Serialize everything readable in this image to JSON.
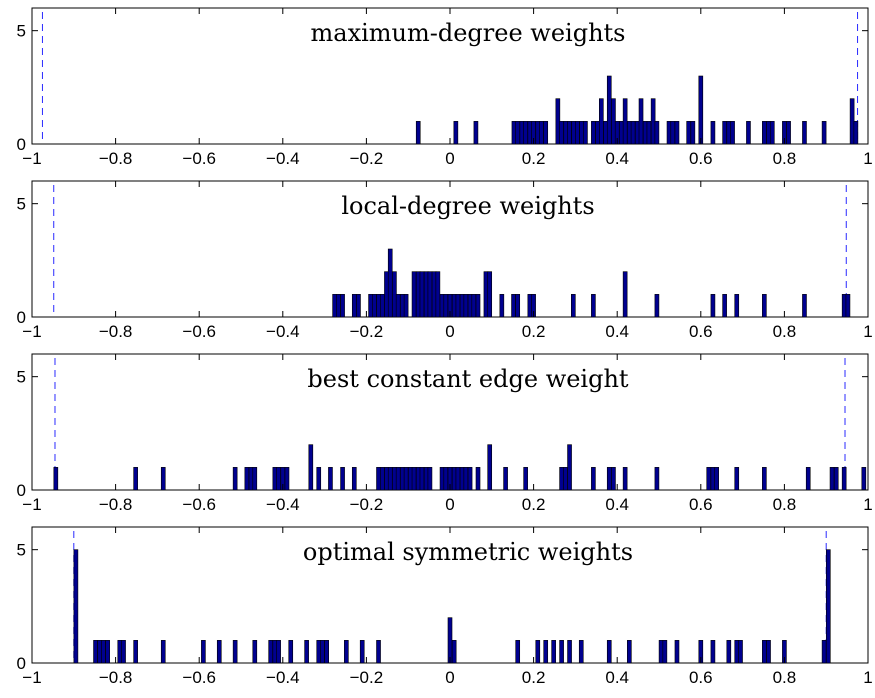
{
  "chart_data": [
    {
      "type": "bar",
      "title": "maximum-degree weights",
      "xlim": [
        -1,
        1
      ],
      "ylim": [
        0,
        6
      ],
      "xticks": [
        "−1",
        "−0.8",
        "−0.6",
        "−0.4",
        "−0.2",
        "0",
        "0.2",
        "0.4",
        "0.6",
        "0.8",
        "1"
      ],
      "yticks": [
        "0",
        "5"
      ],
      "bar_color": "#00008f",
      "bound_color": "#2b2bff",
      "bounds": [
        -0.975,
        0.975
      ],
      "values": [
        {
          "x": -0.076,
          "y": 1
        },
        {
          "x": 0.014,
          "y": 1
        },
        {
          "x": 0.062,
          "y": 1
        },
        {
          "x": 0.153,
          "y": 1
        },
        {
          "x": 0.162,
          "y": 1
        },
        {
          "x": 0.172,
          "y": 1
        },
        {
          "x": 0.181,
          "y": 1
        },
        {
          "x": 0.191,
          "y": 1
        },
        {
          "x": 0.2,
          "y": 1
        },
        {
          "x": 0.21,
          "y": 1
        },
        {
          "x": 0.219,
          "y": 1
        },
        {
          "x": 0.229,
          "y": 1
        },
        {
          "x": 0.258,
          "y": 2
        },
        {
          "x": 0.267,
          "y": 1
        },
        {
          "x": 0.277,
          "y": 1
        },
        {
          "x": 0.286,
          "y": 1
        },
        {
          "x": 0.296,
          "y": 1
        },
        {
          "x": 0.305,
          "y": 1
        },
        {
          "x": 0.315,
          "y": 1
        },
        {
          "x": 0.324,
          "y": 1
        },
        {
          "x": 0.343,
          "y": 1
        },
        {
          "x": 0.353,
          "y": 1
        },
        {
          "x": 0.362,
          "y": 2
        },
        {
          "x": 0.372,
          "y": 1
        },
        {
          "x": 0.381,
          "y": 3
        },
        {
          "x": 0.391,
          "y": 2
        },
        {
          "x": 0.4,
          "y": 1
        },
        {
          "x": 0.41,
          "y": 1
        },
        {
          "x": 0.419,
          "y": 2
        },
        {
          "x": 0.429,
          "y": 1
        },
        {
          "x": 0.438,
          "y": 1
        },
        {
          "x": 0.448,
          "y": 1
        },
        {
          "x": 0.457,
          "y": 2
        },
        {
          "x": 0.467,
          "y": 1
        },
        {
          "x": 0.476,
          "y": 1
        },
        {
          "x": 0.486,
          "y": 2
        },
        {
          "x": 0.495,
          "y": 1
        },
        {
          "x": 0.524,
          "y": 1
        },
        {
          "x": 0.533,
          "y": 1
        },
        {
          "x": 0.543,
          "y": 1
        },
        {
          "x": 0.571,
          "y": 1
        },
        {
          "x": 0.581,
          "y": 1
        },
        {
          "x": 0.6,
          "y": 3
        },
        {
          "x": 0.629,
          "y": 1
        },
        {
          "x": 0.657,
          "y": 1
        },
        {
          "x": 0.667,
          "y": 1
        },
        {
          "x": 0.676,
          "y": 1
        },
        {
          "x": 0.714,
          "y": 1
        },
        {
          "x": 0.752,
          "y": 1
        },
        {
          "x": 0.762,
          "y": 1
        },
        {
          "x": 0.771,
          "y": 1
        },
        {
          "x": 0.8,
          "y": 1
        },
        {
          "x": 0.81,
          "y": 1
        },
        {
          "x": 0.848,
          "y": 1
        },
        {
          "x": 0.895,
          "y": 1
        },
        {
          "x": 0.962,
          "y": 2
        },
        {
          "x": 0.971,
          "y": 1
        }
      ]
    },
    {
      "type": "bar",
      "title": "local-degree weights",
      "xlim": [
        -1,
        1
      ],
      "ylim": [
        0,
        6
      ],
      "xticks": [
        "−1",
        "−0.8",
        "−0.6",
        "−0.4",
        "−0.2",
        "0",
        "0.2",
        "0.4",
        "0.6",
        "0.8",
        "1"
      ],
      "yticks": [
        "0",
        "5"
      ],
      "bar_color": "#00008f",
      "bound_color": "#2b2bff",
      "bounds": [
        -0.948,
        0.948
      ],
      "values": [
        {
          "x": -0.276,
          "y": 1
        },
        {
          "x": -0.267,
          "y": 1
        },
        {
          "x": -0.257,
          "y": 1
        },
        {
          "x": -0.229,
          "y": 1
        },
        {
          "x": -0.219,
          "y": 1
        },
        {
          "x": -0.19,
          "y": 1
        },
        {
          "x": -0.181,
          "y": 1
        },
        {
          "x": -0.171,
          "y": 1
        },
        {
          "x": -0.162,
          "y": 1
        },
        {
          "x": -0.152,
          "y": 2
        },
        {
          "x": -0.143,
          "y": 3
        },
        {
          "x": -0.133,
          "y": 2
        },
        {
          "x": -0.124,
          "y": 1
        },
        {
          "x": -0.114,
          "y": 1
        },
        {
          "x": -0.105,
          "y": 1
        },
        {
          "x": -0.086,
          "y": 2
        },
        {
          "x": -0.076,
          "y": 2
        },
        {
          "x": -0.067,
          "y": 2
        },
        {
          "x": -0.057,
          "y": 2
        },
        {
          "x": -0.048,
          "y": 2
        },
        {
          "x": -0.038,
          "y": 2
        },
        {
          "x": -0.029,
          "y": 2
        },
        {
          "x": -0.019,
          "y": 1
        },
        {
          "x": -0.01,
          "y": 1
        },
        {
          "x": 0.0,
          "y": 1
        },
        {
          "x": 0.01,
          "y": 1
        },
        {
          "x": 0.019,
          "y": 1
        },
        {
          "x": 0.029,
          "y": 1
        },
        {
          "x": 0.038,
          "y": 1
        },
        {
          "x": 0.048,
          "y": 1
        },
        {
          "x": 0.057,
          "y": 1
        },
        {
          "x": 0.067,
          "y": 1
        },
        {
          "x": 0.086,
          "y": 2
        },
        {
          "x": 0.095,
          "y": 2
        },
        {
          "x": 0.124,
          "y": 1
        },
        {
          "x": 0.152,
          "y": 1
        },
        {
          "x": 0.162,
          "y": 1
        },
        {
          "x": 0.191,
          "y": 1
        },
        {
          "x": 0.2,
          "y": 1
        },
        {
          "x": 0.295,
          "y": 1
        },
        {
          "x": 0.343,
          "y": 1
        },
        {
          "x": 0.419,
          "y": 2
        },
        {
          "x": 0.495,
          "y": 1
        },
        {
          "x": 0.629,
          "y": 1
        },
        {
          "x": 0.657,
          "y": 1
        },
        {
          "x": 0.686,
          "y": 1
        },
        {
          "x": 0.752,
          "y": 1
        },
        {
          "x": 0.848,
          "y": 1
        },
        {
          "x": 0.943,
          "y": 1
        },
        {
          "x": 0.952,
          "y": 1
        }
      ]
    },
    {
      "type": "bar",
      "title": "best constant edge weight",
      "xlim": [
        -1,
        1
      ],
      "ylim": [
        0,
        6
      ],
      "xticks": [
        "−1",
        "−0.8",
        "−0.6",
        "−0.4",
        "−0.2",
        "0",
        "0.2",
        "0.4",
        "0.6",
        "0.8",
        "1"
      ],
      "yticks": [
        "0",
        "5"
      ],
      "bar_color": "#00008f",
      "bound_color": "#2b2bff",
      "bounds": [
        -0.945,
        0.945
      ],
      "values": [
        {
          "x": -0.943,
          "y": 1
        },
        {
          "x": -0.752,
          "y": 1
        },
        {
          "x": -0.686,
          "y": 1
        },
        {
          "x": -0.514,
          "y": 1
        },
        {
          "x": -0.486,
          "y": 1
        },
        {
          "x": -0.476,
          "y": 1
        },
        {
          "x": -0.467,
          "y": 1
        },
        {
          "x": -0.419,
          "y": 1
        },
        {
          "x": -0.41,
          "y": 1
        },
        {
          "x": -0.4,
          "y": 1
        },
        {
          "x": -0.39,
          "y": 1
        },
        {
          "x": -0.333,
          "y": 2
        },
        {
          "x": -0.314,
          "y": 1
        },
        {
          "x": -0.286,
          "y": 1
        },
        {
          "x": -0.257,
          "y": 1
        },
        {
          "x": -0.229,
          "y": 1
        },
        {
          "x": -0.171,
          "y": 1
        },
        {
          "x": -0.162,
          "y": 1
        },
        {
          "x": -0.152,
          "y": 1
        },
        {
          "x": -0.143,
          "y": 1
        },
        {
          "x": -0.133,
          "y": 1
        },
        {
          "x": -0.124,
          "y": 1
        },
        {
          "x": -0.114,
          "y": 1
        },
        {
          "x": -0.105,
          "y": 1
        },
        {
          "x": -0.095,
          "y": 1
        },
        {
          "x": -0.086,
          "y": 1
        },
        {
          "x": -0.076,
          "y": 1
        },
        {
          "x": -0.067,
          "y": 1
        },
        {
          "x": -0.057,
          "y": 1
        },
        {
          "x": -0.048,
          "y": 1
        },
        {
          "x": -0.019,
          "y": 1
        },
        {
          "x": -0.01,
          "y": 1
        },
        {
          "x": 0.0,
          "y": 1
        },
        {
          "x": 0.01,
          "y": 1
        },
        {
          "x": 0.019,
          "y": 1
        },
        {
          "x": 0.029,
          "y": 1
        },
        {
          "x": 0.038,
          "y": 1
        },
        {
          "x": 0.048,
          "y": 1
        },
        {
          "x": 0.067,
          "y": 1
        },
        {
          "x": 0.095,
          "y": 2
        },
        {
          "x": 0.133,
          "y": 1
        },
        {
          "x": 0.181,
          "y": 1
        },
        {
          "x": 0.267,
          "y": 1
        },
        {
          "x": 0.276,
          "y": 1
        },
        {
          "x": 0.286,
          "y": 2
        },
        {
          "x": 0.343,
          "y": 1
        },
        {
          "x": 0.381,
          "y": 1
        },
        {
          "x": 0.391,
          "y": 1
        },
        {
          "x": 0.419,
          "y": 1
        },
        {
          "x": 0.495,
          "y": 1
        },
        {
          "x": 0.619,
          "y": 1
        },
        {
          "x": 0.629,
          "y": 1
        },
        {
          "x": 0.638,
          "y": 1
        },
        {
          "x": 0.686,
          "y": 1
        },
        {
          "x": 0.752,
          "y": 1
        },
        {
          "x": 0.857,
          "y": 1
        },
        {
          "x": 0.914,
          "y": 1
        },
        {
          "x": 0.924,
          "y": 1
        },
        {
          "x": 0.943,
          "y": 1
        },
        {
          "x": 0.99,
          "y": 1
        }
      ]
    },
    {
      "type": "bar",
      "title": "optimal symmetric weights",
      "xlim": [
        -1,
        1
      ],
      "ylim": [
        0,
        6
      ],
      "xticks": [
        "−1",
        "−0.8",
        "−0.6",
        "−0.4",
        "−0.2",
        "0",
        "0.2",
        "0.4",
        "0.6",
        "0.8",
        "1"
      ],
      "yticks": [
        "0",
        "5"
      ],
      "bar_color": "#00008f",
      "bound_color": "#2b2bff",
      "bounds": [
        -0.9,
        0.9
      ],
      "values": [
        {
          "x": -0.895,
          "y": 5
        },
        {
          "x": -0.848,
          "y": 1
        },
        {
          "x": -0.838,
          "y": 1
        },
        {
          "x": -0.829,
          "y": 1
        },
        {
          "x": -0.819,
          "y": 1
        },
        {
          "x": -0.79,
          "y": 1
        },
        {
          "x": -0.781,
          "y": 1
        },
        {
          "x": -0.752,
          "y": 1
        },
        {
          "x": -0.686,
          "y": 1
        },
        {
          "x": -0.59,
          "y": 1
        },
        {
          "x": -0.552,
          "y": 1
        },
        {
          "x": -0.514,
          "y": 1
        },
        {
          "x": -0.467,
          "y": 1
        },
        {
          "x": -0.429,
          "y": 1
        },
        {
          "x": -0.419,
          "y": 1
        },
        {
          "x": -0.41,
          "y": 1
        },
        {
          "x": -0.381,
          "y": 1
        },
        {
          "x": -0.343,
          "y": 1
        },
        {
          "x": -0.314,
          "y": 1
        },
        {
          "x": -0.305,
          "y": 1
        },
        {
          "x": -0.295,
          "y": 1
        },
        {
          "x": -0.248,
          "y": 1
        },
        {
          "x": -0.21,
          "y": 1
        },
        {
          "x": -0.171,
          "y": 1
        },
        {
          "x": 0.0,
          "y": 2
        },
        {
          "x": 0.01,
          "y": 1
        },
        {
          "x": 0.162,
          "y": 1
        },
        {
          "x": 0.21,
          "y": 1
        },
        {
          "x": 0.229,
          "y": 1
        },
        {
          "x": 0.248,
          "y": 1
        },
        {
          "x": 0.267,
          "y": 1
        },
        {
          "x": 0.286,
          "y": 1
        },
        {
          "x": 0.314,
          "y": 1
        },
        {
          "x": 0.381,
          "y": 1
        },
        {
          "x": 0.429,
          "y": 1
        },
        {
          "x": 0.505,
          "y": 1
        },
        {
          "x": 0.514,
          "y": 1
        },
        {
          "x": 0.543,
          "y": 1
        },
        {
          "x": 0.6,
          "y": 1
        },
        {
          "x": 0.629,
          "y": 1
        },
        {
          "x": 0.667,
          "y": 1
        },
        {
          "x": 0.686,
          "y": 1
        },
        {
          "x": 0.695,
          "y": 1
        },
        {
          "x": 0.752,
          "y": 1
        },
        {
          "x": 0.762,
          "y": 1
        },
        {
          "x": 0.8,
          "y": 1
        },
        {
          "x": 0.895,
          "y": 1
        },
        {
          "x": 0.905,
          "y": 5
        }
      ]
    }
  ]
}
